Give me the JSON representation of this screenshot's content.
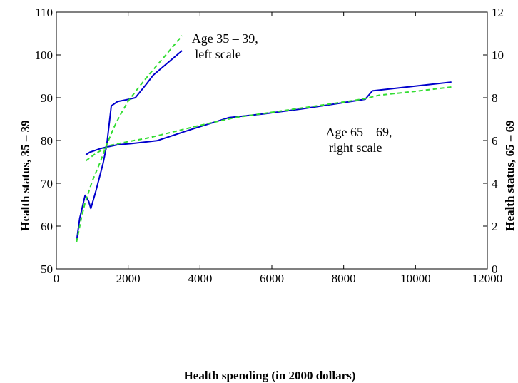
{
  "chart_data": {
    "type": "line",
    "title": "",
    "xlabel": "Health spending (in 2000 dollars)",
    "ylabel_left": "Health status, 35 – 39",
    "ylabel_right": "Health status, 65 – 69",
    "xlim": [
      0,
      12000
    ],
    "ylim_left": [
      50,
      110
    ],
    "ylim_right": [
      0,
      12
    ],
    "xticks": [
      0,
      2000,
      4000,
      6000,
      8000,
      10000,
      12000
    ],
    "xtick_labels": [
      "0",
      "2000",
      "4000",
      "6000",
      "8000",
      "10000",
      "12000"
    ],
    "yticks_left": [
      50,
      60,
      70,
      80,
      90,
      100,
      110
    ],
    "ytick_left_labels": [
      "50",
      "60",
      "70",
      "80",
      "90",
      "100",
      "110"
    ],
    "yticks_right": [
      0,
      2,
      4,
      6,
      8,
      10,
      12
    ],
    "ytick_right_labels": [
      "0",
      "2",
      "4",
      "6",
      "8",
      "10",
      "12"
    ],
    "grid": false,
    "colors": {
      "solid": "#0000cc",
      "dashed": "#33dd33"
    },
    "annotations": [
      {
        "id": "age-35",
        "lines": [
          "Age 35 – 39,",
          " left scale"
        ],
        "x": 3770,
        "y_left": 102.8
      },
      {
        "id": "age-65",
        "lines": [
          "Age 65 – 69,",
          " right scale"
        ],
        "x": 7500,
        "y_left": 81.0
      }
    ],
    "series": [
      {
        "id": "age35-actual",
        "axis": "left",
        "style": "solid",
        "x": [
          560,
          650,
          800,
          900,
          960,
          1100,
          1300,
          1400,
          1530,
          1700,
          2000,
          2200,
          2500,
          2700,
          3500
        ],
        "y": [
          56.3,
          61.8,
          67.2,
          65.8,
          64.1,
          68.2,
          74.6,
          78.8,
          88.1,
          89.1,
          89.6,
          90.0,
          93.1,
          95.3,
          101.0
        ]
      },
      {
        "id": "age35-fitted",
        "axis": "left",
        "style": "dashed",
        "x": [
          560,
          700,
          800,
          1000,
          1200,
          1400,
          1600,
          1800,
          2000,
          2300,
          2600,
          3000,
          3500
        ],
        "y": [
          56.2,
          62.0,
          65.5,
          70.5,
          74.5,
          79.0,
          83.0,
          86.3,
          89.2,
          92.5,
          95.6,
          99.5,
          104.5
        ]
      },
      {
        "id": "age65-actual",
        "axis": "right",
        "style": "solid",
        "x": [
          820,
          930,
          1050,
          1220,
          1450,
          1700,
          2100,
          2800,
          3700,
          4800,
          5800,
          6800,
          7800,
          8600,
          8800,
          11000
        ],
        "y": [
          5.33,
          5.45,
          5.52,
          5.62,
          5.71,
          5.8,
          5.86,
          5.99,
          6.49,
          7.07,
          7.25,
          7.47,
          7.72,
          7.93,
          8.32,
          8.73
        ]
      },
      {
        "id": "age65-fitted",
        "axis": "right",
        "style": "dashed",
        "x": [
          820,
          1100,
          1500,
          2000,
          2500,
          3000,
          4000,
          5000,
          6000,
          7000,
          8000,
          8600,
          9000,
          10000,
          11000
        ],
        "y": [
          5.05,
          5.4,
          5.77,
          5.95,
          6.1,
          6.3,
          6.71,
          7.08,
          7.32,
          7.56,
          7.8,
          7.96,
          8.12,
          8.3,
          8.5
        ]
      }
    ]
  }
}
